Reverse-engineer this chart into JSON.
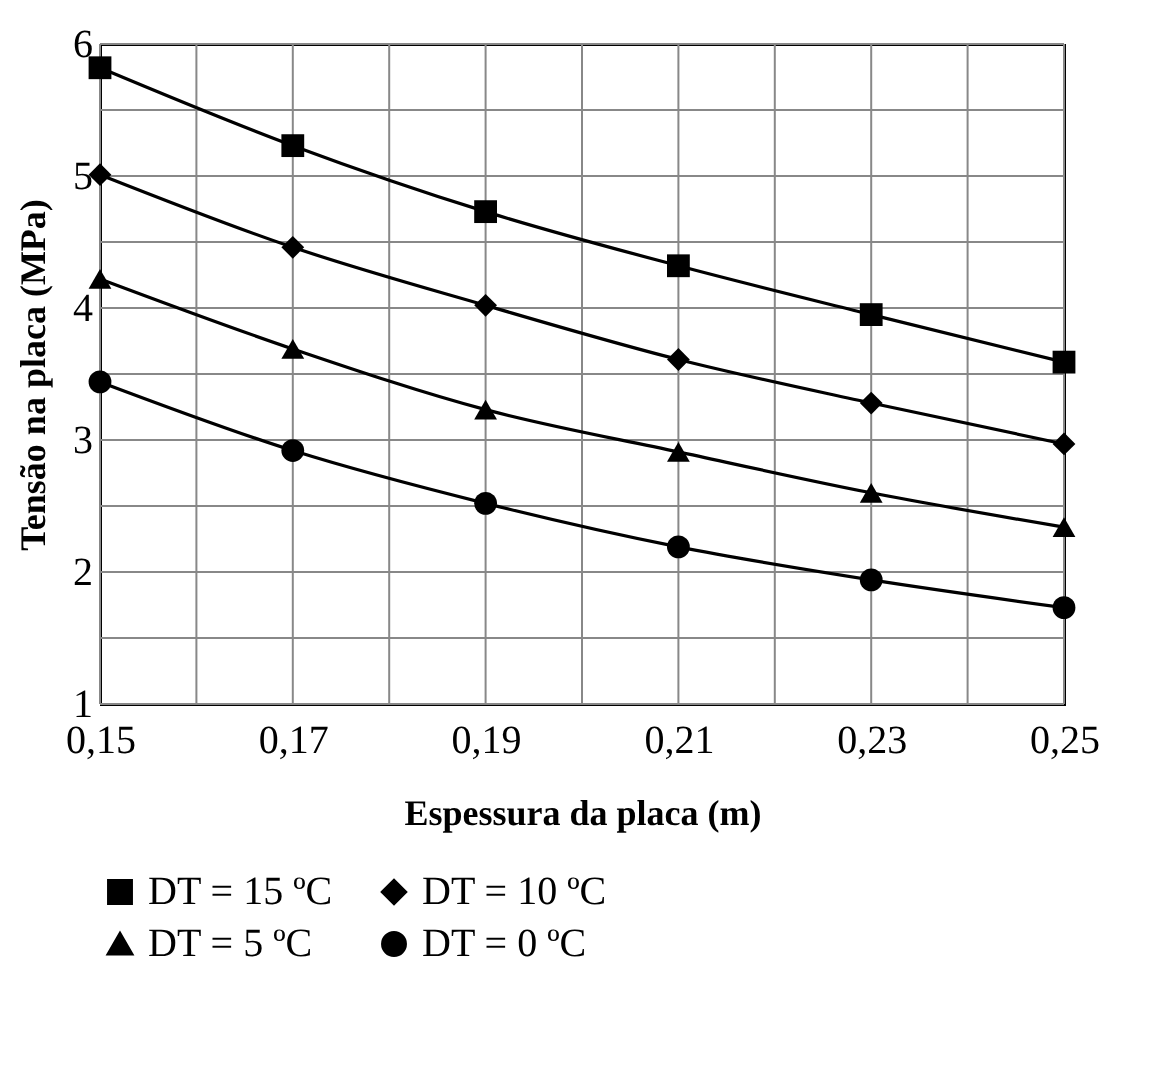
{
  "chart_data": {
    "type": "line",
    "xlabel": "Espessura da placa (m)",
    "ylabel": "Tensão na placa (MPa)",
    "x": [
      0.15,
      0.17,
      0.19,
      0.21,
      0.23,
      0.25
    ],
    "series": [
      {
        "name": "DT = 15 ºC",
        "color": "#000000",
        "marker": "square",
        "values": [
          5.82,
          5.23,
          4.73,
          4.32,
          3.95,
          3.59
        ]
      },
      {
        "name": "DT = 10 ºC",
        "color": "#000000",
        "marker": "diamond",
        "values": [
          5.01,
          4.46,
          4.02,
          3.61,
          3.28,
          2.97
        ]
      },
      {
        "name": "DT = 5 ºC",
        "color": "#000000",
        "marker": "triangle",
        "values": [
          4.22,
          3.69,
          3.23,
          2.91,
          2.6,
          2.34
        ]
      },
      {
        "name": "DT = 0 ºC",
        "color": "#000000",
        "marker": "circle",
        "values": [
          3.44,
          2.92,
          2.52,
          2.19,
          1.94,
          1.73
        ]
      }
    ],
    "xlim": [
      0.15,
      0.25
    ],
    "xticks": [
      {
        "value": 0.15,
        "label": "0,15"
      },
      {
        "value": 0.16,
        "label": null
      },
      {
        "value": 0.17,
        "label": "0,17"
      },
      {
        "value": 0.18,
        "label": null
      },
      {
        "value": 0.19,
        "label": "0,19"
      },
      {
        "value": 0.2,
        "label": null
      },
      {
        "value": 0.21,
        "label": "0,21"
      },
      {
        "value": 0.22,
        "label": null
      },
      {
        "value": 0.23,
        "label": "0,23"
      },
      {
        "value": 0.24,
        "label": null
      },
      {
        "value": 0.25,
        "label": "0,25"
      }
    ],
    "ylim": [
      1,
      6
    ],
    "yticks": [
      1,
      {
        "value": 1.5,
        "label": null
      },
      2,
      {
        "value": 2.5,
        "label": null
      },
      3,
      {
        "value": 3.5,
        "label": null
      },
      4,
      {
        "value": 4.5,
        "label": null
      },
      5,
      {
        "value": 5.5,
        "label": null
      },
      6
    ],
    "grid": true,
    "legend": "bottom",
    "line_style": "solid"
  }
}
